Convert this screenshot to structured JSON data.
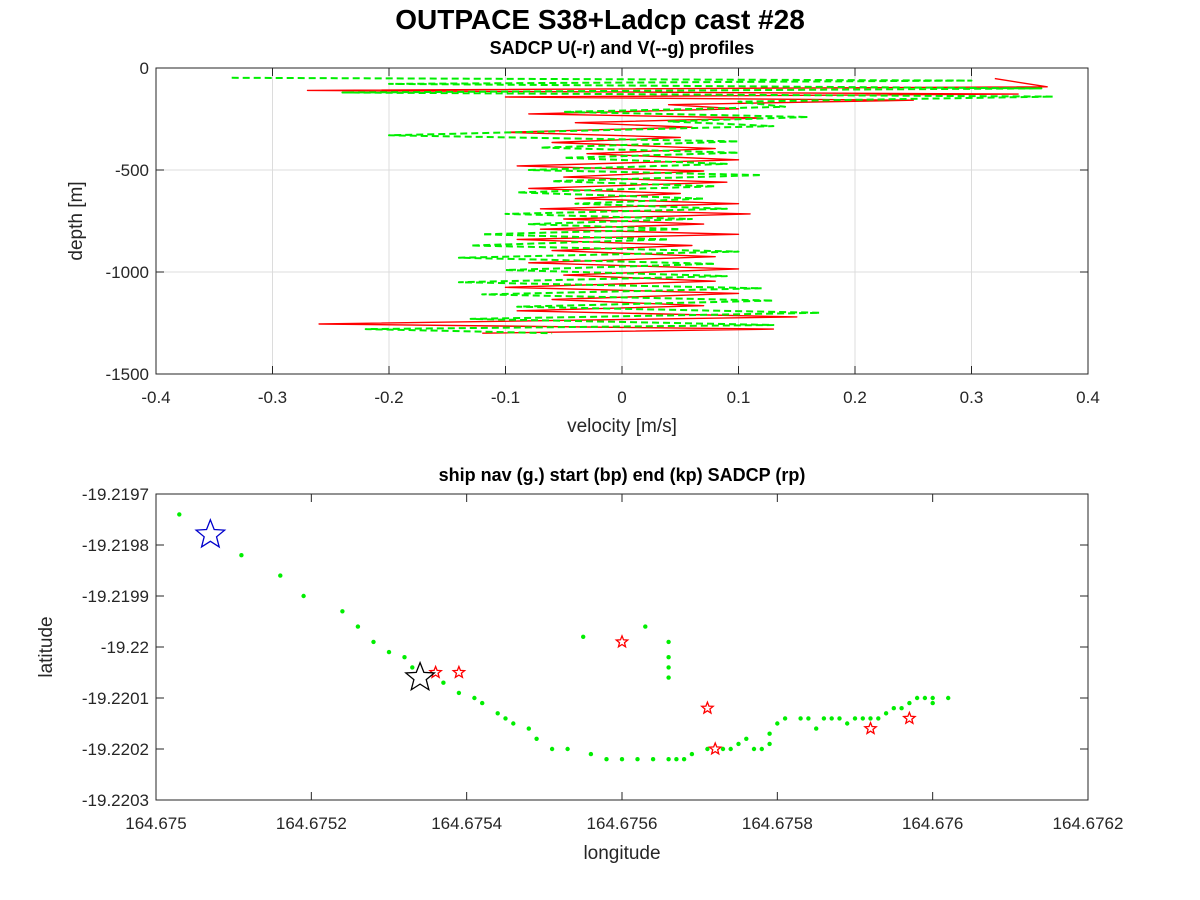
{
  "figure": {
    "title": "OUTPACE S38+Ladcp cast #28"
  },
  "chart_data": [
    {
      "type": "line",
      "title": "SADCP U(-r) and V(--g) profiles",
      "xlabel": "velocity [m/s]",
      "ylabel": "depth [m]",
      "xlim": [
        -0.4,
        0.4
      ],
      "ylim": [
        -1500,
        0
      ],
      "xticks": [
        -0.4,
        -0.3,
        -0.2,
        -0.1,
        0,
        0.1,
        0.2,
        0.3,
        0.4
      ],
      "xtick_labels": [
        "-0.4",
        "-0.3",
        "-0.2",
        "-0.1",
        "0",
        "0.1",
        "0.2",
        "0.3",
        "0.4"
      ],
      "yticks": [
        0,
        -500,
        -1000,
        -1500
      ],
      "ytick_labels": [
        "0",
        "-500",
        "-1000",
        "-1500"
      ],
      "grid": true,
      "series": [
        {
          "name": "U",
          "color": "#ff0000",
          "style": "solid",
          "points": [
            [
              0.32,
              -52
            ],
            [
              0.365,
              -92
            ],
            [
              -0.27,
              -110
            ],
            [
              0.34,
              -128
            ],
            [
              -0.1,
              -142
            ],
            [
              0.25,
              -158
            ],
            [
              0.04,
              -180
            ],
            [
              0.1,
              -200
            ],
            [
              -0.08,
              -225
            ],
            [
              0.12,
              -245
            ],
            [
              -0.04,
              -268
            ],
            [
              0.06,
              -290
            ],
            [
              -0.1,
              -315
            ],
            [
              0.05,
              -340
            ],
            [
              -0.06,
              -365
            ],
            [
              0.08,
              -395
            ],
            [
              -0.03,
              -420
            ],
            [
              0.1,
              -450
            ],
            [
              -0.09,
              -480
            ],
            [
              0.07,
              -505
            ],
            [
              -0.05,
              -535
            ],
            [
              0.09,
              -560
            ],
            [
              -0.08,
              -590
            ],
            [
              0.05,
              -615
            ],
            [
              -0.04,
              -640
            ],
            [
              0.1,
              -665
            ],
            [
              -0.07,
              -690
            ],
            [
              0.11,
              -715
            ],
            [
              -0.05,
              -740
            ],
            [
              0.07,
              -765
            ],
            [
              -0.07,
              -790
            ],
            [
              0.1,
              -815
            ],
            [
              -0.09,
              -840
            ],
            [
              0.06,
              -870
            ],
            [
              -0.06,
              -895
            ],
            [
              0.08,
              -925
            ],
            [
              -0.08,
              -955
            ],
            [
              0.1,
              -985
            ],
            [
              -0.05,
              -1015
            ],
            [
              0.08,
              -1045
            ],
            [
              -0.1,
              -1075
            ],
            [
              0.1,
              -1105
            ],
            [
              -0.06,
              -1135
            ],
            [
              0.07,
              -1165
            ],
            [
              -0.09,
              -1190
            ],
            [
              0.15,
              -1220
            ],
            [
              -0.26,
              -1255
            ],
            [
              0.13,
              -1280
            ],
            [
              -0.12,
              -1300
            ]
          ]
        },
        {
          "name": "V",
          "color": "#00ee00",
          "style": "dashed",
          "points": [
            [
              -0.335,
              -48
            ],
            [
              0.3,
              -62
            ],
            [
              -0.2,
              -78
            ],
            [
              0.36,
              -100
            ],
            [
              -0.24,
              -120
            ],
            [
              0.37,
              -140
            ],
            [
              0.1,
              -165
            ],
            [
              0.14,
              -190
            ],
            [
              -0.05,
              -215
            ],
            [
              0.16,
              -240
            ],
            [
              0.04,
              -262
            ],
            [
              0.13,
              -285
            ],
            [
              -0.2,
              -330
            ],
            [
              0.1,
              -360
            ],
            [
              -0.07,
              -390
            ],
            [
              0.1,
              -415
            ],
            [
              -0.05,
              -440
            ],
            [
              0.09,
              -470
            ],
            [
              -0.08,
              -500
            ],
            [
              0.12,
              -525
            ],
            [
              -0.06,
              -555
            ],
            [
              0.08,
              -580
            ],
            [
              -0.09,
              -610
            ],
            [
              0.07,
              -640
            ],
            [
              -0.04,
              -665
            ],
            [
              0.09,
              -690
            ],
            [
              -0.1,
              -715
            ],
            [
              0.06,
              -740
            ],
            [
              -0.08,
              -765
            ],
            [
              0.05,
              -790
            ],
            [
              -0.12,
              -815
            ],
            [
              0.04,
              -840
            ],
            [
              -0.13,
              -870
            ],
            [
              0.1,
              -900
            ],
            [
              -0.14,
              -930
            ],
            [
              0.08,
              -960
            ],
            [
              -0.1,
              -990
            ],
            [
              0.09,
              -1020
            ],
            [
              -0.14,
              -1050
            ],
            [
              0.12,
              -1080
            ],
            [
              -0.12,
              -1110
            ],
            [
              0.13,
              -1140
            ],
            [
              -0.09,
              -1170
            ],
            [
              0.17,
              -1200
            ],
            [
              -0.13,
              -1230
            ],
            [
              0.13,
              -1260
            ],
            [
              -0.22,
              -1280
            ],
            [
              -0.06,
              -1300
            ]
          ]
        }
      ]
    },
    {
      "type": "scatter",
      "title": "ship nav (g.) start (bp) end (kp) SADCP (rp)",
      "xlabel": "longitude",
      "ylabel": "latitude",
      "xlim": [
        164.675,
        164.6762
      ],
      "ylim": [
        -19.2203,
        -19.2197
      ],
      "xticks": [
        164.675,
        164.6752,
        164.6754,
        164.6756,
        164.6758,
        164.676,
        164.6762
      ],
      "xtick_labels": [
        "164.675",
        "164.6752",
        "164.6754",
        "164.6756",
        "164.6758",
        "164.676",
        "164.6762"
      ],
      "yticks": [
        -19.2197,
        -19.2198,
        -19.2199,
        -19.22,
        -19.2201,
        -19.2202,
        -19.2203
      ],
      "ytick_labels": [
        "-19.2197",
        "-19.2198",
        "-19.2199",
        "-19.22",
        "-19.2201",
        "-19.2202",
        "-19.2203"
      ],
      "grid": false,
      "nav": {
        "color": "#00ee00",
        "x": [
          164.67503,
          164.67511,
          164.67516,
          164.67519,
          164.67524,
          164.67526,
          164.67528,
          164.6753,
          164.67532,
          164.67533,
          164.67537,
          164.67539,
          164.67541,
          164.67542,
          164.67544,
          164.67545,
          164.67546,
          164.67548,
          164.67549,
          164.67551,
          164.67553,
          164.67556,
          164.67558,
          164.6756,
          164.67562,
          164.67564,
          164.67566,
          164.67567,
          164.67568,
          164.67569,
          164.67571,
          164.67573,
          164.67574,
          164.67575,
          164.67576,
          164.67577,
          164.67578,
          164.67579,
          164.67579,
          164.6758,
          164.67581,
          164.67583,
          164.67584,
          164.67585,
          164.67586,
          164.67587,
          164.67588,
          164.67589,
          164.6759,
          164.67591,
          164.67592,
          164.67593,
          164.67594,
          164.67595,
          164.67596,
          164.67597,
          164.67598,
          164.67599,
          164.676,
          164.676,
          164.67602,
          164.67555,
          164.67563,
          164.67566,
          164.67566,
          164.67566,
          164.67566
        ],
        "y": [
          -19.21974,
          -19.21982,
          -19.21986,
          -19.2199,
          -19.21993,
          -19.21996,
          -19.21999,
          -19.22001,
          -19.22002,
          -19.22004,
          -19.22007,
          -19.22009,
          -19.2201,
          -19.22011,
          -19.22013,
          -19.22014,
          -19.22015,
          -19.22016,
          -19.22018,
          -19.2202,
          -19.2202,
          -19.22021,
          -19.22022,
          -19.22022,
          -19.22022,
          -19.22022,
          -19.22022,
          -19.22022,
          -19.22022,
          -19.22021,
          -19.2202,
          -19.2202,
          -19.2202,
          -19.22019,
          -19.22018,
          -19.2202,
          -19.2202,
          -19.22019,
          -19.22017,
          -19.22015,
          -19.22014,
          -19.22014,
          -19.22014,
          -19.22016,
          -19.22014,
          -19.22014,
          -19.22014,
          -19.22015,
          -19.22014,
          -19.22014,
          -19.22014,
          -19.22014,
          -19.22013,
          -19.22012,
          -19.22012,
          -19.22011,
          -19.2201,
          -19.2201,
          -19.22011,
          -19.2201,
          -19.2201,
          -19.21998,
          -19.21996,
          -19.21999,
          -19.22002,
          -19.22004,
          -19.22006
        ]
      },
      "start": {
        "x": 164.67507,
        "y": -19.21978,
        "color": "#0000cc"
      },
      "end": {
        "x": 164.67534,
        "y": -19.22006,
        "color": "#000000"
      },
      "sadcp": {
        "color": "#ff0000",
        "x": [
          164.67536,
          164.67539,
          164.6756,
          164.67571,
          164.67572,
          164.67592,
          164.67597
        ],
        "y": [
          -19.22005,
          -19.22005,
          -19.21999,
          -19.22012,
          -19.2202,
          -19.22016,
          -19.22014
        ]
      }
    }
  ]
}
